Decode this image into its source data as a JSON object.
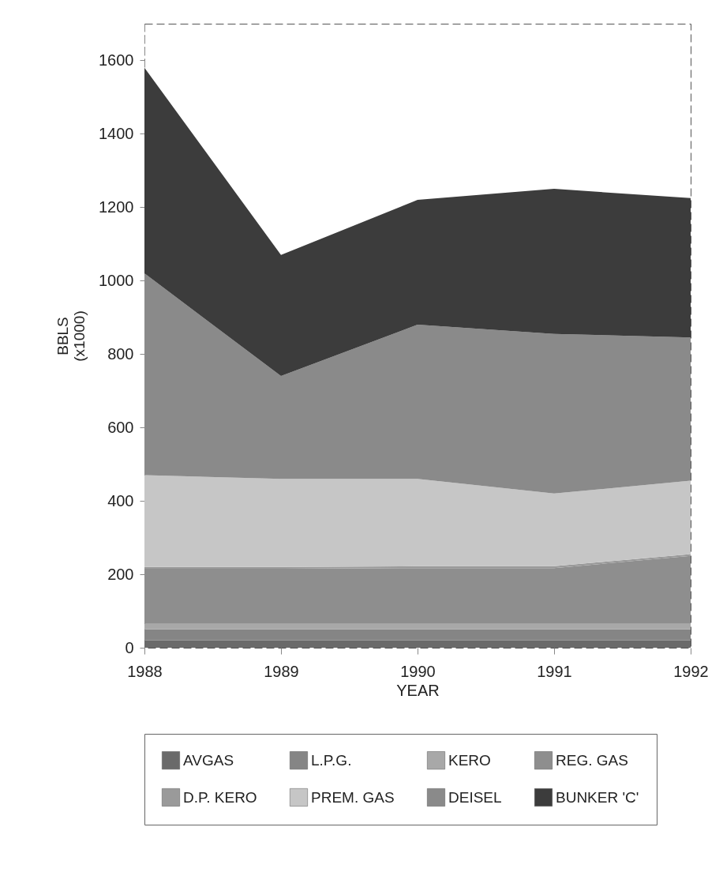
{
  "chart_data": {
    "type": "area",
    "stacked": true,
    "xlabel": "YEAR",
    "ylabel": "BBLS (x1000)",
    "x": [
      1988,
      1989,
      1990,
      1991,
      1992
    ],
    "xlim": [
      1988,
      1992
    ],
    "xticks": [
      1988,
      1989,
      1990,
      1991,
      1992
    ],
    "ylim": [
      0,
      1700
    ],
    "yticks": [
      0,
      200,
      400,
      600,
      800,
      1000,
      1200,
      1400,
      1600
    ],
    "grid": false,
    "legend": "bottom",
    "series": [
      {
        "name": "AVGAS",
        "color": "#6a6a6a",
        "values": [
          20,
          20,
          20,
          20,
          20
        ]
      },
      {
        "name": "L.P.G.",
        "color": "#858585",
        "values": [
          30,
          30,
          30,
          30,
          30
        ]
      },
      {
        "name": "KERO",
        "color": "#a8a8a8",
        "values": [
          15,
          15,
          15,
          15,
          15
        ]
      },
      {
        "name": "REG. GAS",
        "color": "#8e8e8e",
        "values": [
          150,
          150,
          152,
          152,
          185
        ]
      },
      {
        "name": "D.P. KERO",
        "color": "#9a9a9a",
        "values": [
          5,
          5,
          5,
          5,
          5
        ]
      },
      {
        "name": "PREM. GAS",
        "color": "#c6c6c6",
        "values": [
          250,
          240,
          238,
          198,
          200
        ]
      },
      {
        "name": "DEISEL",
        "color": "#8a8a8a",
        "values": [
          550,
          280,
          420,
          435,
          390
        ]
      },
      {
        "name": "BUNKER 'C'",
        "color": "#3c3c3c",
        "values": [
          560,
          330,
          340,
          395,
          380
        ]
      }
    ]
  }
}
